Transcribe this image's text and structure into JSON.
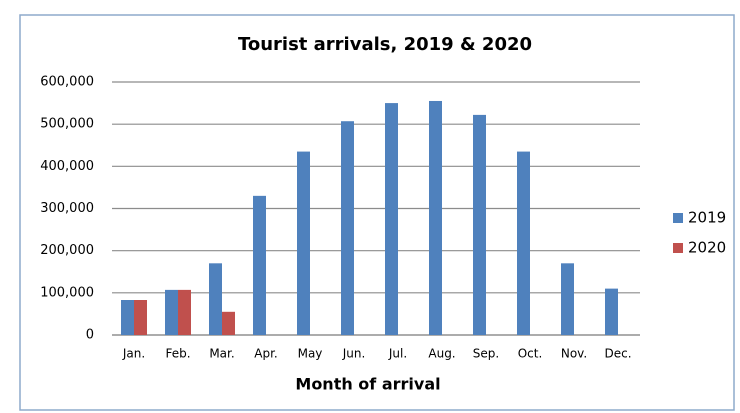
{
  "chart_data": {
    "type": "bar",
    "title": "Tourist arrivals, 2019 & 2020",
    "x_label": "Month of arrival",
    "categories": [
      "Jan.",
      "Feb.",
      "Mar.",
      "Apr.",
      "May",
      "Jun.",
      "Jul.",
      "Aug.",
      "Sep.",
      "Oct.",
      "Nov.",
      "Dec."
    ],
    "series": [
      {
        "name": "2019",
        "color": "#4f81bd",
        "values": [
          83000,
          107000,
          170000,
          330000,
          435000,
          507000,
          550000,
          555000,
          522000,
          435000,
          170000,
          110000
        ]
      },
      {
        "name": "2020",
        "color": "#c0504d",
        "values": [
          83000,
          107000,
          55000,
          null,
          null,
          null,
          null,
          null,
          null,
          null,
          null,
          null
        ]
      }
    ],
    "ylim": [
      0,
      600000
    ],
    "yticks": [
      0,
      {
        "value": 100000,
        "label": "100,000"
      },
      {
        "value": 200000,
        "label": "200,000"
      },
      {
        "value": 300000,
        "label": "300,000"
      },
      {
        "value": 400000,
        "label": "400,000"
      },
      {
        "value": 500000,
        "label": "500,000"
      },
      {
        "value": 600000,
        "label": "600,000"
      }
    ],
    "grid": true,
    "legend": "right"
  }
}
